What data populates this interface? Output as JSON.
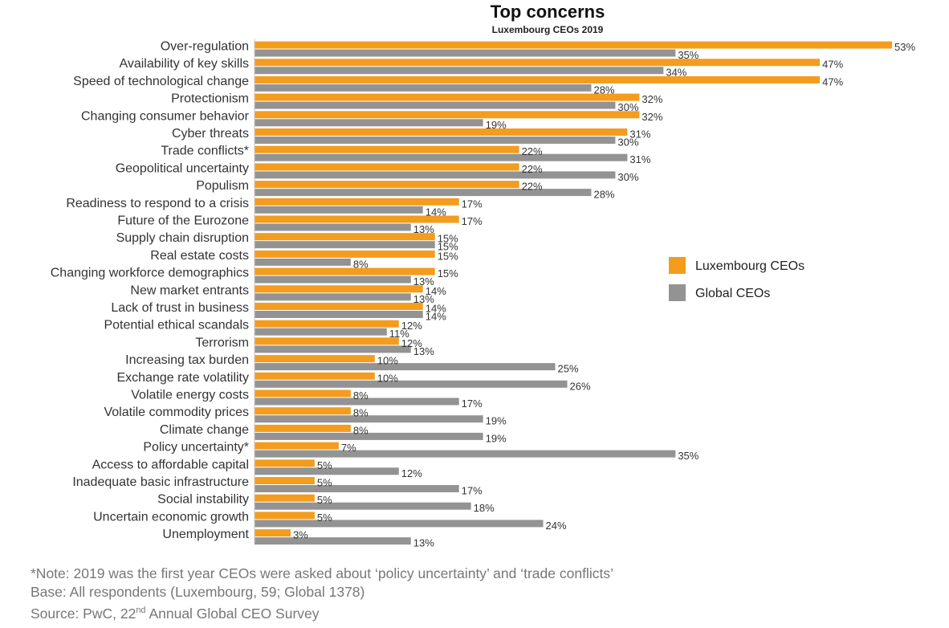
{
  "chart_data": {
    "type": "bar",
    "orientation": "horizontal",
    "title": "Top concerns",
    "subtitle": "Luxembourg CEOs 2019",
    "categories": [
      "Over-regulation",
      "Availability of key skills",
      "Speed of technological change",
      "Protectionism",
      "Changing consumer behavior",
      "Cyber threats",
      "Trade conflicts*",
      "Geopolitical uncertainty",
      "Populism",
      "Readiness to respond to a crisis",
      "Future of the Eurozone",
      "Supply chain disruption",
      "Real estate costs",
      "Changing workforce demographics",
      "New market entrants",
      "Lack of trust in business",
      "Potential ethical scandals",
      "Terrorism",
      "Increasing tax burden",
      "Exchange rate volatility",
      "Volatile energy costs",
      "Volatile commodity prices",
      "Climate change",
      "Policy uncertainty*",
      "Access to affordable capital",
      "Inadequate basic infrastructure",
      "Social instability",
      "Uncertain economic growth",
      "Unemployment"
    ],
    "series": [
      {
        "name": "Luxembourg CEOs",
        "color": "#F39C1D",
        "values": [
          53,
          47,
          47,
          32,
          32,
          31,
          22,
          22,
          22,
          17,
          17,
          15,
          15,
          15,
          14,
          14,
          12,
          12,
          10,
          10,
          8,
          8,
          8,
          7,
          5,
          5,
          5,
          5,
          3
        ]
      },
      {
        "name": "Global CEOs",
        "color": "#939393",
        "values": [
          35,
          34,
          28,
          30,
          19,
          30,
          31,
          30,
          28,
          14,
          13,
          15,
          8,
          13,
          13,
          14,
          11,
          13,
          25,
          26,
          17,
          19,
          19,
          35,
          12,
          17,
          18,
          24,
          13
        ]
      }
    ],
    "value_suffix": "%",
    "xlim": [
      0,
      53
    ],
    "legend_position": "right",
    "grid": false
  },
  "notes": {
    "note_line": "*Note: 2019 was the first year CEOs were asked about ‘policy uncertainty’ and ‘trade conflicts’",
    "base_line": "Base: All respondents (Luxembourg, 59; Global 1378)",
    "source_prefix": "Source: PwC, 22",
    "source_sup": "nd",
    "source_suffix": " Annual Global CEO Survey"
  }
}
